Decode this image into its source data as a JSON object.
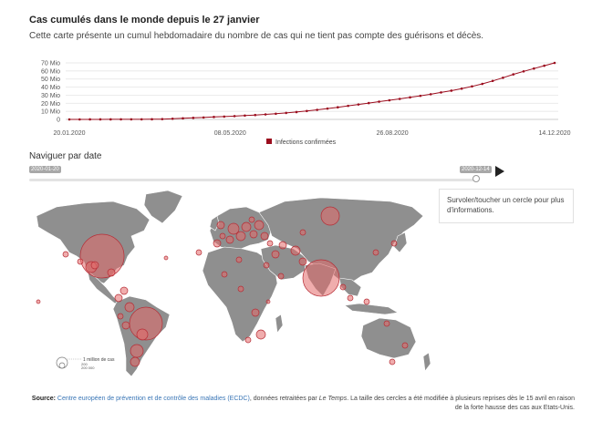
{
  "header": {
    "title": "Cas cumulés dans le monde depuis le 27 janvier",
    "subtitle": "Cette carte présente un cumul hebdomadaire du nombre de cas qui ne tient pas compte des guérisons et décès."
  },
  "chart_data": {
    "type": "line",
    "y_ticks": [
      "70 Mio",
      "60 Mio",
      "50 Mio",
      "40 Mio",
      "30 Mio",
      "20 Mio",
      "10 Mio",
      "0"
    ],
    "y_tick_values": [
      70,
      60,
      50,
      40,
      30,
      20,
      10,
      0
    ],
    "ylim": [
      0,
      70
    ],
    "x_ticks": [
      "20.01.2020",
      "08.05.2020",
      "26.08.2020",
      "14.12.2020"
    ],
    "legend": "Infections confirmées",
    "legend_placement": "bottom",
    "grid": true,
    "color": "#9b0d1e",
    "series": [
      {
        "name": "Infections confirmées",
        "x": [
          "2020-01-20",
          "2020-01-27",
          "2020-02-03",
          "2020-02-10",
          "2020-02-17",
          "2020-02-24",
          "2020-03-02",
          "2020-03-09",
          "2020-03-16",
          "2020-03-23",
          "2020-03-30",
          "2020-04-06",
          "2020-04-13",
          "2020-04-20",
          "2020-04-27",
          "2020-05-04",
          "2020-05-11",
          "2020-05-18",
          "2020-05-25",
          "2020-06-01",
          "2020-06-08",
          "2020-06-15",
          "2020-06-22",
          "2020-06-29",
          "2020-07-06",
          "2020-07-13",
          "2020-07-20",
          "2020-07-27",
          "2020-08-03",
          "2020-08-10",
          "2020-08-17",
          "2020-08-24",
          "2020-08-31",
          "2020-09-07",
          "2020-09-14",
          "2020-09-21",
          "2020-09-28",
          "2020-10-05",
          "2020-10-12",
          "2020-10-19",
          "2020-10-26",
          "2020-11-02",
          "2020-11-09",
          "2020-11-16",
          "2020-11-23",
          "2020-11-30",
          "2020-12-07",
          "2020-12-14"
        ],
        "values": [
          0.0,
          0.003,
          0.02,
          0.04,
          0.07,
          0.08,
          0.09,
          0.12,
          0.19,
          0.38,
          0.78,
          1.3,
          1.9,
          2.4,
          3.0,
          3.5,
          4.1,
          4.7,
          5.4,
          6.2,
          7.0,
          8.0,
          9.1,
          10.4,
          11.8,
          13.4,
          15.0,
          16.8,
          18.5,
          20.2,
          22.0,
          23.7,
          25.4,
          27.3,
          29.2,
          31.2,
          33.4,
          35.6,
          38.1,
          40.9,
          44.0,
          47.7,
          51.6,
          55.8,
          59.5,
          63.0,
          66.5,
          70.0
        ]
      }
    ]
  },
  "navigation": {
    "label": "Naviguer par date",
    "start_date": "2020-01-20",
    "end_date": "2020-12-14",
    "position": 1.0
  },
  "map": {
    "legend_label": "1 million de cas",
    "legend_small_1": "200",
    "legend_small_2": "200 000",
    "land_color": "#8f8f8f",
    "bubble_color": "#e46a6a",
    "bubble_stroke": "#b52d36"
  },
  "info_box": {
    "text": "Survoler/toucher un cercle pour plus d'informations."
  },
  "source": {
    "label": "Source:",
    "link_text": "Centre européen de prévention et de contrôle des maladies (ECDC)",
    "text_1": ", données retraitées par ",
    "publication": "Le Temps",
    "text_2": ". La taille des cercles a été modifiée à plusieurs reprises dès le 15 avril en raison de la forte hausse des cas aux Etats-Unis."
  }
}
